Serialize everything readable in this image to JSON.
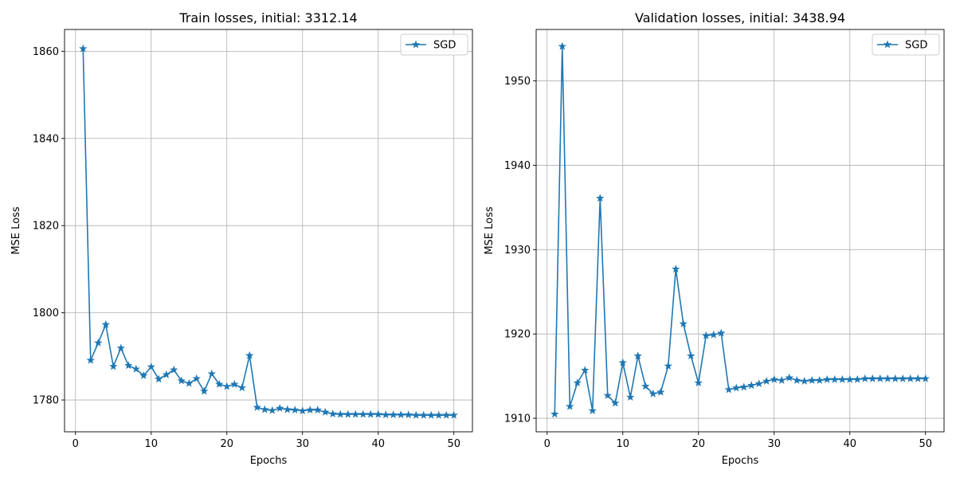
{
  "chart_data": [
    {
      "type": "line",
      "title": "Train losses, initial: 3312.14",
      "xlabel": "Epochs",
      "ylabel": "MSE Loss",
      "xlim": [
        -1.45,
        52.45
      ],
      "ylim": [
        1772.7,
        1865.0
      ],
      "xticks": [
        0,
        10,
        20,
        30,
        40,
        50
      ],
      "yticks": [
        1780,
        1800,
        1820,
        1840,
        1860
      ],
      "grid": true,
      "legend_position": "top-right",
      "color": "#1f77b4",
      "marker": "star",
      "series": [
        {
          "name": "SGD",
          "x": [
            1,
            2,
            3,
            4,
            5,
            6,
            7,
            8,
            9,
            10,
            11,
            12,
            13,
            14,
            15,
            16,
            17,
            18,
            19,
            20,
            21,
            22,
            23,
            24,
            25,
            26,
            27,
            28,
            29,
            30,
            31,
            32,
            33,
            34,
            35,
            36,
            37,
            38,
            39,
            40,
            41,
            42,
            43,
            44,
            45,
            46,
            47,
            48,
            49,
            50
          ],
          "y": [
            1860.6,
            1789.1,
            1793.1,
            1797.3,
            1787.7,
            1791.9,
            1787.9,
            1787.1,
            1785.6,
            1787.6,
            1784.8,
            1785.8,
            1786.9,
            1784.4,
            1783.8,
            1784.9,
            1782.0,
            1786.0,
            1783.6,
            1783.1,
            1783.6,
            1782.8,
            1790.2,
            1778.3,
            1777.8,
            1777.6,
            1778.1,
            1777.8,
            1777.7,
            1777.5,
            1777.7,
            1777.7,
            1777.2,
            1776.8,
            1776.7,
            1776.7,
            1776.7,
            1776.7,
            1776.7,
            1776.7,
            1776.6,
            1776.6,
            1776.6,
            1776.6,
            1776.5,
            1776.5,
            1776.5,
            1776.5,
            1776.5,
            1776.5
          ]
        }
      ]
    },
    {
      "type": "line",
      "title": "Validation losses, initial: 3438.94",
      "xlabel": "Epochs",
      "ylabel": "MSE Loss",
      "xlim": [
        -1.45,
        52.45
      ],
      "ylim": [
        1908.4,
        1956.1
      ],
      "xticks": [
        0,
        10,
        20,
        30,
        40,
        50
      ],
      "yticks": [
        1910,
        1920,
        1930,
        1940,
        1950
      ],
      "grid": true,
      "legend_position": "top-right",
      "color": "#1f77b4",
      "marker": "star",
      "series": [
        {
          "name": "SGD",
          "x": [
            1,
            2,
            3,
            4,
            5,
            6,
            7,
            8,
            9,
            10,
            11,
            12,
            13,
            14,
            15,
            16,
            17,
            18,
            19,
            20,
            21,
            22,
            23,
            24,
            25,
            26,
            27,
            28,
            29,
            30,
            31,
            32,
            33,
            34,
            35,
            36,
            37,
            38,
            39,
            40,
            41,
            42,
            43,
            44,
            45,
            46,
            47,
            48,
            49,
            50
          ],
          "y": [
            1910.5,
            1954.1,
            1911.4,
            1914.2,
            1915.7,
            1910.9,
            1936.1,
            1912.7,
            1911.8,
            1916.6,
            1912.5,
            1917.4,
            1913.8,
            1912.9,
            1913.1,
            1916.2,
            1927.7,
            1921.2,
            1917.4,
            1914.2,
            1919.8,
            1919.9,
            1920.1,
            1913.4,
            1913.6,
            1913.7,
            1913.9,
            1914.1,
            1914.4,
            1914.6,
            1914.5,
            1914.8,
            1914.5,
            1914.4,
            1914.5,
            1914.5,
            1914.6,
            1914.6,
            1914.6,
            1914.6,
            1914.6,
            1914.7,
            1914.7,
            1914.7,
            1914.7,
            1914.7,
            1914.7,
            1914.7,
            1914.7,
            1914.7
          ]
        }
      ]
    }
  ]
}
